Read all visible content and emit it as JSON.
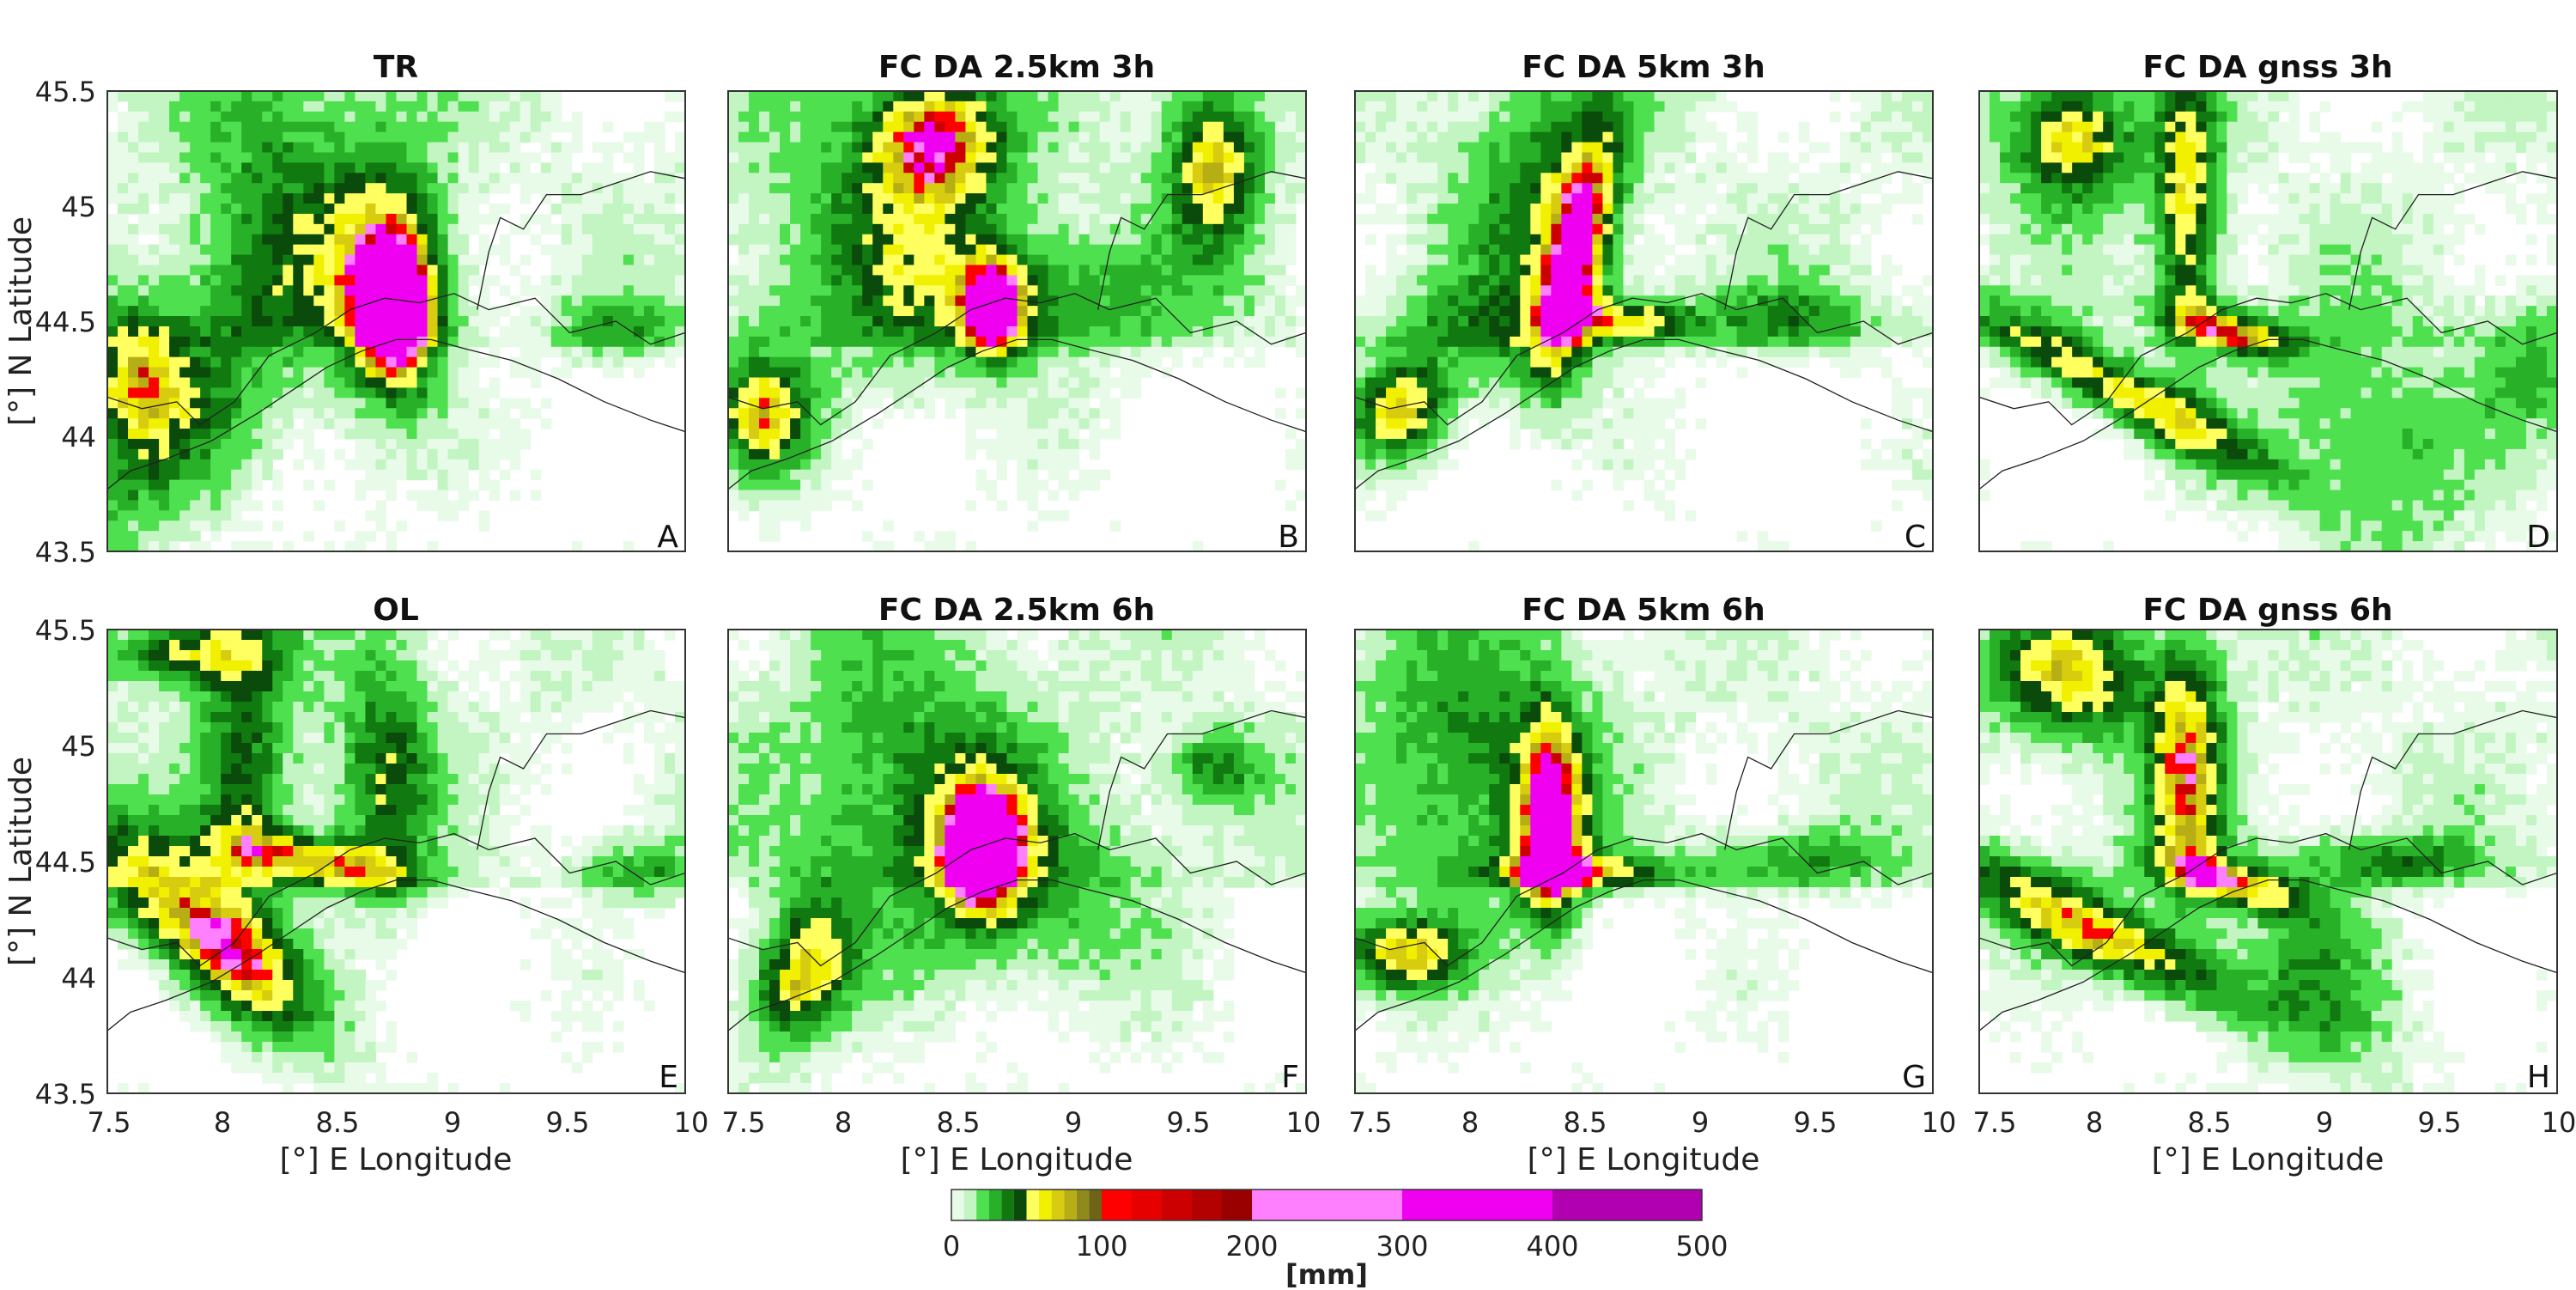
{
  "figure": {
    "colorbar": {
      "label": "[mm]",
      "ticks": [
        "0",
        "100",
        "200",
        "300",
        "400",
        "500"
      ],
      "colors": [
        "#e8fbe8",
        "#c2f5c2",
        "#4fe04f",
        "#28b028",
        "#107a10",
        "#0a4a0a",
        "#ffff60",
        "#f0f000",
        "#d8cc10",
        "#b7ad14",
        "#908a1c",
        "#6d6417",
        "#ff0000",
        "#e60000",
        "#cc0000",
        "#b30000",
        "#990000",
        "#ff80ff",
        "#f000f0",
        "#b000b0"
      ]
    }
  },
  "chart_data": [
    {
      "type": "heatmap",
      "title": "TR",
      "corner_label": "A",
      "xlabel": "",
      "ylabel": "[°] N Latitude",
      "xlim": [
        7.5,
        10
      ],
      "ylim": [
        43.5,
        45.5
      ],
      "yticks": [
        "45.5",
        "45",
        "44.5",
        "44",
        "43.5"
      ],
      "xticks": [],
      "max_cell_class": "magenta",
      "peak_lon": 8.7,
      "peak_lat": 44.55,
      "unit": "mm"
    },
    {
      "type": "heatmap",
      "title": "FC DA 2.5km 3h",
      "corner_label": "B",
      "xlabel": "",
      "ylabel": "",
      "xlim": [
        7.5,
        10
      ],
      "ylim": [
        43.5,
        45.5
      ],
      "yticks": [],
      "xticks": [],
      "max_cell_class": "red",
      "peak_lon": 8.65,
      "peak_lat": 44.5,
      "unit": "mm"
    },
    {
      "type": "heatmap",
      "title": "FC DA 5km 3h",
      "corner_label": "C",
      "xlabel": "",
      "ylabel": "",
      "xlim": [
        7.5,
        10
      ],
      "ylim": [
        43.5,
        45.5
      ],
      "yticks": [],
      "xticks": [],
      "max_cell_class": "red",
      "peak_lon": 8.45,
      "peak_lat": 44.45,
      "unit": "mm"
    },
    {
      "type": "heatmap",
      "title": "FC DA gnss 3h",
      "corner_label": "D",
      "xlabel": "",
      "ylabel": "",
      "xlim": [
        7.5,
        10
      ],
      "ylim": [
        43.5,
        45.5
      ],
      "yticks": [],
      "xticks": [],
      "max_cell_class": "red",
      "peak_lon": 8.6,
      "peak_lat": 44.45,
      "unit": "mm"
    },
    {
      "type": "heatmap",
      "title": "OL",
      "corner_label": "E",
      "xlabel": "[°] E Longitude",
      "ylabel": "[°] N Latitude",
      "xlim": [
        7.5,
        10
      ],
      "ylim": [
        43.5,
        45.5
      ],
      "yticks": [
        "45.5",
        "45",
        "44.5",
        "44",
        "43.5"
      ],
      "xticks": [
        "7.5",
        "8",
        "8.5",
        "9",
        "9.5",
        "10"
      ],
      "max_cell_class": "olive",
      "peak_lon": 7.95,
      "peak_lat": 44.2,
      "unit": "mm"
    },
    {
      "type": "heatmap",
      "title": "FC DA 2.5km 6h",
      "corner_label": "F",
      "xlabel": "[°] E Longitude",
      "ylabel": "",
      "xlim": [
        7.5,
        10
      ],
      "ylim": [
        43.5,
        45.5
      ],
      "yticks": [],
      "xticks": [
        "7.5",
        "8",
        "8.5",
        "9",
        "9.5",
        "10"
      ],
      "max_cell_class": "red",
      "peak_lon": 8.62,
      "peak_lat": 44.5,
      "unit": "mm"
    },
    {
      "type": "heatmap",
      "title": "FC DA 5km 6h",
      "corner_label": "G",
      "xlabel": "[°] E Longitude",
      "ylabel": "",
      "xlim": [
        7.5,
        10
      ],
      "ylim": [
        43.5,
        45.5
      ],
      "yticks": [],
      "xticks": [
        "7.5",
        "8",
        "8.5",
        "9",
        "9.5",
        "10"
      ],
      "max_cell_class": "olive",
      "peak_lon": 8.35,
      "peak_lat": 44.6,
      "unit": "mm"
    },
    {
      "type": "heatmap",
      "title": "FC DA gnss 6h",
      "corner_label": "H",
      "xlabel": "[°] E Longitude",
      "ylabel": "",
      "xlim": [
        7.5,
        10
      ],
      "ylim": [
        43.5,
        45.5
      ],
      "yticks": [],
      "xticks": [
        "7.5",
        "8",
        "8.5",
        "9",
        "9.5",
        "10"
      ],
      "max_cell_class": "olive",
      "peak_lon": 7.8,
      "peak_lat": 44.1,
      "unit": "mm"
    }
  ]
}
